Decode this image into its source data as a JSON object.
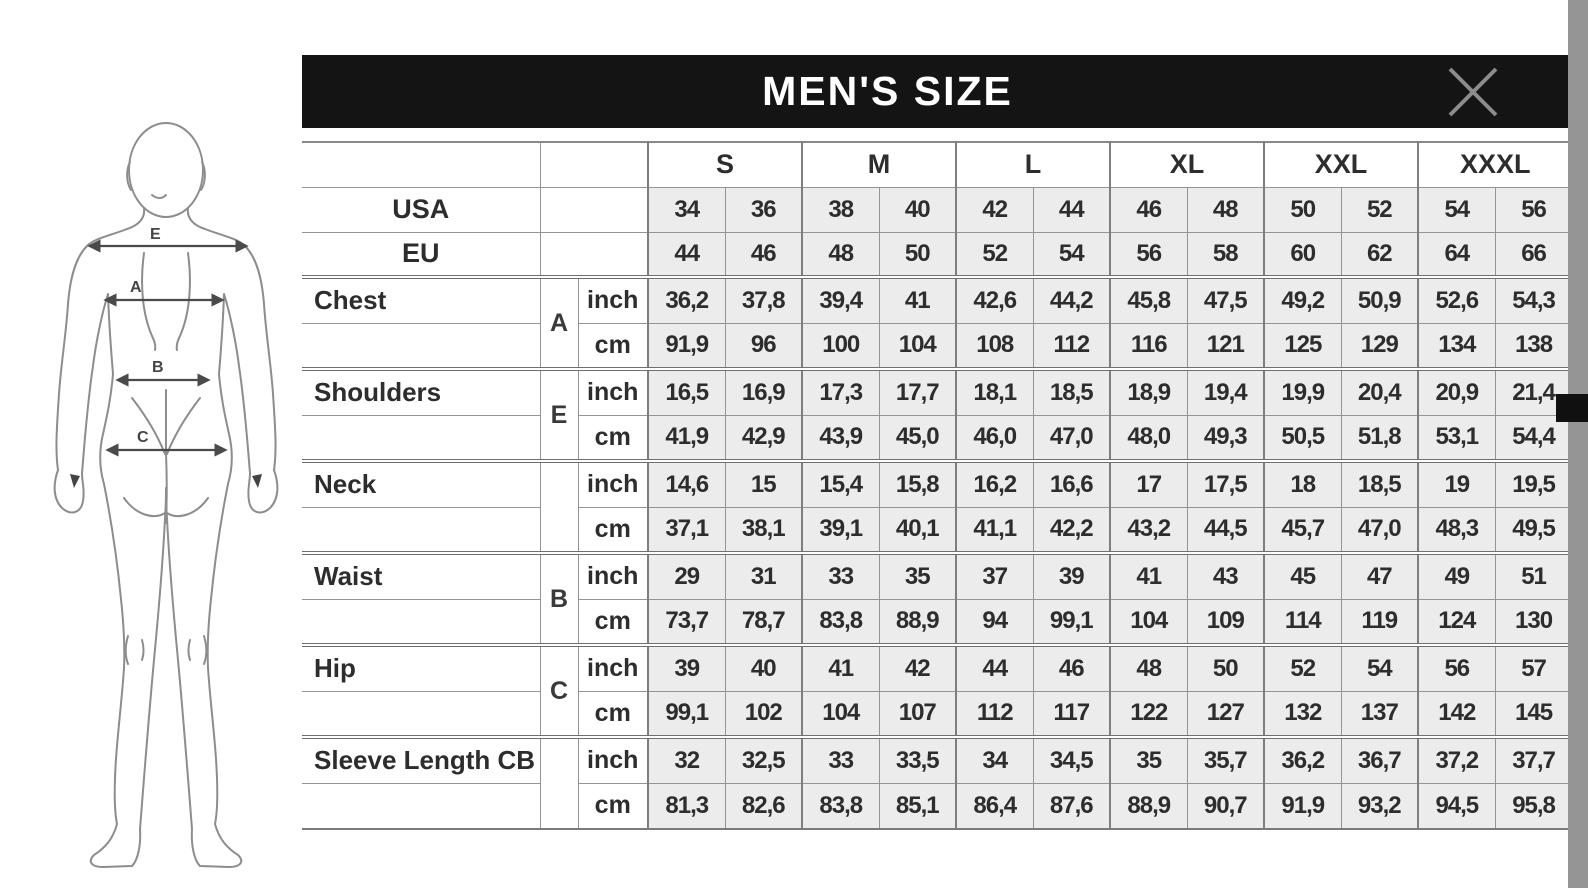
{
  "header": {
    "title": "MEN'S SIZE"
  },
  "table": {
    "size_groups": [
      "S",
      "M",
      "L",
      "XL",
      "XXL",
      "XXXL"
    ],
    "region_rows": [
      {
        "label": "USA",
        "values": [
          "34",
          "36",
          "38",
          "40",
          "42",
          "44",
          "46",
          "48",
          "50",
          "52",
          "54",
          "56"
        ]
      },
      {
        "label": "EU",
        "values": [
          "44",
          "46",
          "48",
          "50",
          "52",
          "54",
          "56",
          "58",
          "60",
          "62",
          "64",
          "66"
        ]
      }
    ],
    "units": [
      "inch",
      "cm"
    ],
    "measurements": [
      {
        "label": "Chest",
        "letter": "A",
        "inch": [
          "36,2",
          "37,8",
          "39,4",
          "41",
          "42,6",
          "44,2",
          "45,8",
          "47,5",
          "49,2",
          "50,9",
          "52,6",
          "54,3"
        ],
        "cm": [
          "91,9",
          "96",
          "100",
          "104",
          "108",
          "112",
          "116",
          "121",
          "125",
          "129",
          "134",
          "138"
        ]
      },
      {
        "label": "Shoulders",
        "letter": "E",
        "inch": [
          "16,5",
          "16,9",
          "17,3",
          "17,7",
          "18,1",
          "18,5",
          "18,9",
          "19,4",
          "19,9",
          "20,4",
          "20,9",
          "21,4"
        ],
        "cm": [
          "41,9",
          "42,9",
          "43,9",
          "45,0",
          "46,0",
          "47,0",
          "48,0",
          "49,3",
          "50,5",
          "51,8",
          "53,1",
          "54,4"
        ]
      },
      {
        "label": "Neck",
        "letter": "",
        "inch": [
          "14,6",
          "15",
          "15,4",
          "15,8",
          "16,2",
          "16,6",
          "17",
          "17,5",
          "18",
          "18,5",
          "19",
          "19,5"
        ],
        "cm": [
          "37,1",
          "38,1",
          "39,1",
          "40,1",
          "41,1",
          "42,2",
          "43,2",
          "44,5",
          "45,7",
          "47,0",
          "48,3",
          "49,5"
        ]
      },
      {
        "label": "Waist",
        "letter": "B",
        "inch": [
          "29",
          "31",
          "33",
          "35",
          "37",
          "39",
          "41",
          "43",
          "45",
          "47",
          "49",
          "51"
        ],
        "cm": [
          "73,7",
          "78,7",
          "83,8",
          "88,9",
          "94",
          "99,1",
          "104",
          "109",
          "114",
          "119",
          "124",
          "130"
        ]
      },
      {
        "label": "Hip",
        "letter": "C",
        "inch": [
          "39",
          "40",
          "41",
          "42",
          "44",
          "46",
          "48",
          "50",
          "52",
          "54",
          "56",
          "57"
        ],
        "cm": [
          "99,1",
          "102",
          "104",
          "107",
          "112",
          "117",
          "122",
          "127",
          "132",
          "137",
          "142",
          "145"
        ]
      },
      {
        "label": "Sleeve Length CB",
        "letter": "",
        "inch": [
          "32",
          "32,5",
          "33",
          "33,5",
          "34",
          "34,5",
          "35",
          "35,7",
          "36,2",
          "36,7",
          "37,2",
          "37,7"
        ],
        "cm": [
          "81,3",
          "82,6",
          "83,8",
          "85,1",
          "86,4",
          "87,6",
          "88,9",
          "90,7",
          "91,9",
          "93,2",
          "94,5",
          "95,8"
        ]
      }
    ]
  },
  "diagram": {
    "arrow_labels": [
      "E",
      "A",
      "B",
      "C"
    ]
  }
}
